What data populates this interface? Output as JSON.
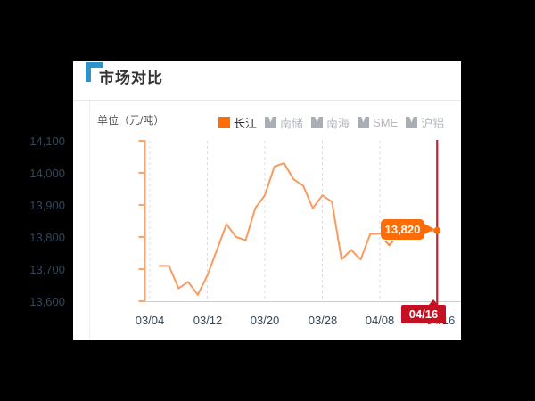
{
  "header": {
    "title": "市场对比"
  },
  "panel": {
    "unit_label": "单位（元/吨）",
    "legend": [
      {
        "label": "长江",
        "active": true
      },
      {
        "label": "南储",
        "active": false
      },
      {
        "label": "南海",
        "active": false
      },
      {
        "label": "SME",
        "active": false
      },
      {
        "label": "沪铝",
        "active": false
      }
    ]
  },
  "chart_data": {
    "type": "line",
    "title": "市场对比",
    "ylabel": "单位（元/吨）",
    "ylim": [
      13600,
      14100
    ],
    "y_tick_labels": [
      "14,100",
      "14,000",
      "13,900",
      "13,800",
      "13,700",
      "13,600"
    ],
    "x_tick_labels": [
      "03/04",
      "03/12",
      "03/20",
      "03/28",
      "04/08",
      "04/16"
    ],
    "grid": "vertical-dashed",
    "legend_position": "top-right",
    "series": [
      {
        "name": "长江",
        "values": [
          13710,
          13710,
          13640,
          13660,
          13620,
          13680,
          13760,
          13840,
          13800,
          13790,
          13890,
          13930,
          14020,
          14030,
          13980,
          13960,
          13890,
          13930,
          13910,
          13730,
          13760,
          13730,
          13810,
          13810,
          13820,
          13820,
          13820,
          13820,
          13820,
          13820
        ]
      }
    ],
    "annotations": {
      "last_price": 13820,
      "last_price_label": "13,820",
      "current_date_label": "04/16"
    },
    "colors": {
      "line": "#fa9a5f",
      "axis_orange": "#faa26a",
      "accent_orange": "#fd6c07",
      "marker_red": "#c50f23",
      "corner_blue": "#2d93ca",
      "grid": "#dcdcdc",
      "inactive_gray": "#a9aeb4"
    }
  }
}
